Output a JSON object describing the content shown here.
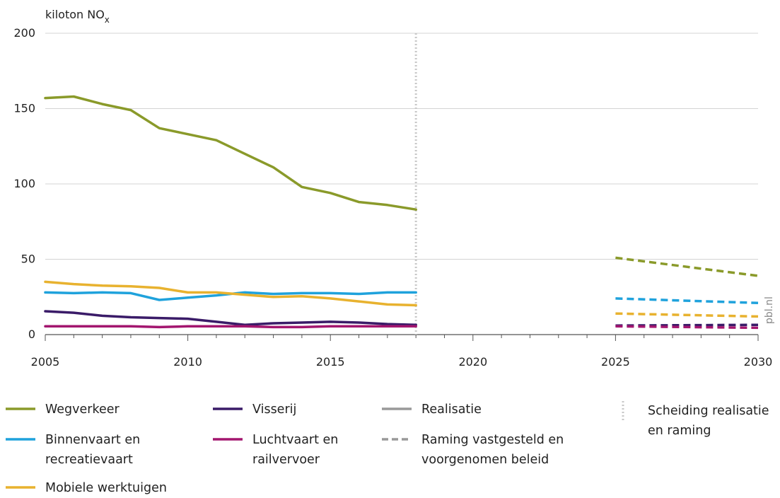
{
  "chart_data": {
    "type": "line",
    "ylabel": "kiloton NO",
    "ylabel_sub": "x",
    "xlim": [
      2005,
      2030
    ],
    "ylim": [
      0,
      200
    ],
    "x_ticks": [
      "2005",
      "2010",
      "2015",
      "2020",
      "2025",
      "2030"
    ],
    "y_ticks": [
      "0",
      "50",
      "100",
      "150",
      "200"
    ],
    "grid": "horizontal",
    "divider_year": 2018,
    "watermark": "pbl.nl",
    "series": [
      {
        "name": "Wegverkeer",
        "color": "#8a9a2a",
        "realisatie": {
          "x": [
            2005,
            2006,
            2007,
            2008,
            2009,
            2010,
            2011,
            2012,
            2013,
            2014,
            2015,
            2016,
            2017,
            2018
          ],
          "y": [
            157,
            158,
            153,
            149,
            137,
            133,
            129,
            120,
            111,
            98,
            94,
            88,
            86,
            83
          ]
        },
        "raming": {
          "x": [
            2025,
            2030
          ],
          "y": [
            51,
            39
          ]
        }
      },
      {
        "name": "Binnenvaart en\nrecreatievaart",
        "color": "#1fa2dc",
        "realisatie": {
          "x": [
            2005,
            2006,
            2007,
            2008,
            2009,
            2010,
            2011,
            2012,
            2013,
            2014,
            2015,
            2016,
            2017,
            2018
          ],
          "y": [
            28,
            27.5,
            28,
            27.5,
            23,
            24.5,
            26,
            28,
            27,
            27.5,
            27.5,
            27,
            28,
            28
          ]
        },
        "raming": {
          "x": [
            2025,
            2030
          ],
          "y": [
            24,
            21
          ]
        }
      },
      {
        "name": "Mobiele werktuigen",
        "color": "#e8b22f",
        "realisatie": {
          "x": [
            2005,
            2006,
            2007,
            2008,
            2009,
            2010,
            2011,
            2012,
            2013,
            2014,
            2015,
            2016,
            2017,
            2018
          ],
          "y": [
            35,
            33.5,
            32.5,
            32,
            31,
            28,
            28,
            26.5,
            25,
            25.5,
            24,
            22,
            20,
            19.5
          ]
        },
        "raming": {
          "x": [
            2025,
            2030
          ],
          "y": [
            14,
            12
          ]
        }
      },
      {
        "name": "Visserij",
        "color": "#3a1b68",
        "realisatie": {
          "x": [
            2005,
            2006,
            2007,
            2008,
            2009,
            2010,
            2011,
            2012,
            2013,
            2014,
            2015,
            2016,
            2017,
            2018
          ],
          "y": [
            15.5,
            14.5,
            12.5,
            11.5,
            11,
            10.5,
            8.5,
            6.5,
            7.5,
            8,
            8.5,
            8,
            7,
            6.5
          ]
        },
        "raming": {
          "x": [
            2025,
            2030
          ],
          "y": [
            6,
            6.5
          ]
        }
      },
      {
        "name": "Luchtvaart en\nrailvervoer",
        "color": "#a3166f",
        "realisatie": {
          "x": [
            2005,
            2006,
            2007,
            2008,
            2009,
            2010,
            2011,
            2012,
            2013,
            2014,
            2015,
            2016,
            2017,
            2018
          ],
          "y": [
            5.5,
            5.5,
            5.5,
            5.5,
            5,
            5.5,
            5.5,
            5.5,
            5,
            5,
            5.5,
            5.5,
            5.5,
            5.5
          ]
        },
        "raming": {
          "x": [
            2025,
            2030
          ],
          "y": [
            5.5,
            4.5
          ]
        }
      }
    ],
    "legend_extra": [
      {
        "name": "Realisatie",
        "style": "solid"
      },
      {
        "name": "Raming vastgesteld en\nvoorgenomen beleid",
        "style": "dashed"
      },
      {
        "name": "Scheiding realisatie\nen raming",
        "style": "dotted-vertical"
      }
    ]
  }
}
